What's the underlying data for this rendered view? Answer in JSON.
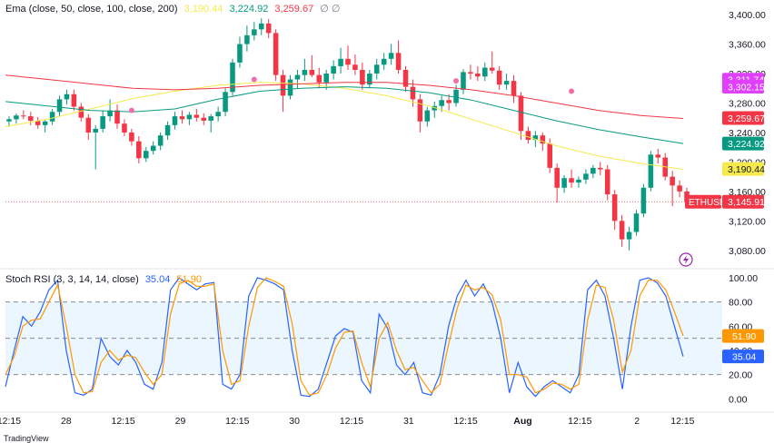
{
  "chart_data": [
    {
      "type": "candlestick",
      "symbol": "ETHUSD",
      "indicator": "Ema (close, 50, close, 100, close, 200)",
      "ema_values": {
        "ema50": "3,190.44",
        "ema100": "3,224.92",
        "ema200": "3,259.67",
        "ema_extra": "∅ ∅"
      },
      "price_label": "3,145.91",
      "right_tags": [
        {
          "text": "3,311.74",
          "color": "#e040fb"
        },
        {
          "text": "3,302.15",
          "color": "#e040fb"
        },
        {
          "text": "3,259.67",
          "color": "#f23645"
        },
        {
          "text": "3,224.92",
          "color": "#089981"
        },
        {
          "text": "3,190.44",
          "color": "#f5e94b"
        }
      ],
      "yticks": [
        "3,400.00",
        "3,360.00",
        "3,320.00",
        "3,280.00",
        "3,240.00",
        "3,200.00",
        "3,160.00",
        "3,120.00",
        "3,080.00"
      ],
      "ytick_values": [
        3400,
        3360,
        3320,
        3280,
        3240,
        3200,
        3160,
        3120,
        3080
      ],
      "ylim": [
        3060,
        3410
      ],
      "ohlc": [
        [
          3255,
          3262,
          3248,
          3258
        ],
        [
          3258,
          3266,
          3252,
          3263
        ],
        [
          3263,
          3270,
          3258,
          3262
        ],
        [
          3262,
          3268,
          3250,
          3256
        ],
        [
          3256,
          3261,
          3245,
          3250
        ],
        [
          3250,
          3258,
          3240,
          3255
        ],
        [
          3255,
          3272,
          3250,
          3268
        ],
        [
          3268,
          3290,
          3262,
          3285
        ],
        [
          3285,
          3298,
          3278,
          3292
        ],
        [
          3292,
          3298,
          3270,
          3275
        ],
        [
          3275,
          3280,
          3255,
          3260
        ],
        [
          3260,
          3265,
          3230,
          3240
        ],
        [
          3240,
          3250,
          3190,
          3245
        ],
        [
          3245,
          3270,
          3240,
          3262
        ],
        [
          3262,
          3285,
          3255,
          3270
        ],
        [
          3270,
          3278,
          3245,
          3252
        ],
        [
          3252,
          3258,
          3235,
          3240
        ],
        [
          3240,
          3245,
          3222,
          3228
        ],
        [
          3228,
          3235,
          3198,
          3205
        ],
        [
          3205,
          3220,
          3200,
          3215
        ],
        [
          3215,
          3228,
          3210,
          3222
        ],
        [
          3222,
          3240,
          3216,
          3236
        ],
        [
          3236,
          3255,
          3230,
          3250
        ],
        [
          3250,
          3268,
          3244,
          3262
        ],
        [
          3262,
          3270,
          3252,
          3258
        ],
        [
          3258,
          3268,
          3250,
          3264
        ],
        [
          3264,
          3272,
          3255,
          3260
        ],
        [
          3260,
          3266,
          3250,
          3256
        ],
        [
          3256,
          3265,
          3240,
          3262
        ],
        [
          3262,
          3275,
          3255,
          3268
        ],
        [
          3268,
          3300,
          3262,
          3295
        ],
        [
          3295,
          3340,
          3290,
          3335
        ],
        [
          3335,
          3370,
          3328,
          3360
        ],
        [
          3360,
          3385,
          3350,
          3372
        ],
        [
          3372,
          3390,
          3365,
          3380
        ],
        [
          3380,
          3395,
          3372,
          3388
        ],
        [
          3388,
          3394,
          3368,
          3375
        ],
        [
          3375,
          3380,
          3310,
          3318
        ],
        [
          3318,
          3325,
          3268,
          3290
        ],
        [
          3290,
          3318,
          3285,
          3312
        ],
        [
          3312,
          3325,
          3300,
          3318
        ],
        [
          3318,
          3340,
          3310,
          3325
        ],
        [
          3325,
          3345,
          3315,
          3318
        ],
        [
          3318,
          3328,
          3300,
          3308
        ],
        [
          3308,
          3325,
          3298,
          3320
        ],
        [
          3320,
          3338,
          3312,
          3330
        ],
        [
          3330,
          3355,
          3320,
          3340
        ],
        [
          3340,
          3358,
          3325,
          3332
        ],
        [
          3332,
          3346,
          3318,
          3325
        ],
        [
          3325,
          3335,
          3298,
          3305
        ],
        [
          3305,
          3325,
          3300,
          3320
        ],
        [
          3320,
          3340,
          3312,
          3332
        ],
        [
          3332,
          3348,
          3325,
          3340
        ],
        [
          3340,
          3360,
          3332,
          3348
        ],
        [
          3348,
          3365,
          3320,
          3325
        ],
        [
          3325,
          3330,
          3295,
          3302
        ],
        [
          3302,
          3312,
          3275,
          3285
        ],
        [
          3285,
          3292,
          3240,
          3255
        ],
        [
          3255,
          3275,
          3248,
          3270
        ],
        [
          3270,
          3282,
          3260,
          3276
        ],
        [
          3276,
          3290,
          3268,
          3284
        ],
        [
          3284,
          3292,
          3270,
          3280
        ],
        [
          3280,
          3305,
          3275,
          3298
        ],
        [
          3298,
          3326,
          3292,
          3322
        ],
        [
          3322,
          3332,
          3312,
          3320
        ],
        [
          3320,
          3330,
          3310,
          3316
        ],
        [
          3316,
          3335,
          3310,
          3328
        ],
        [
          3328,
          3350,
          3320,
          3324
        ],
        [
          3324,
          3330,
          3298,
          3305
        ],
        [
          3305,
          3320,
          3298,
          3310
        ],
        [
          3310,
          3318,
          3280,
          3290
        ],
        [
          3290,
          3295,
          3230,
          3242
        ],
        [
          3242,
          3248,
          3225,
          3230
        ],
        [
          3230,
          3242,
          3220,
          3236
        ],
        [
          3236,
          3240,
          3215,
          3225
        ],
        [
          3225,
          3232,
          3185,
          3192
        ],
        [
          3192,
          3198,
          3145,
          3165
        ],
        [
          3165,
          3182,
          3158,
          3178
        ],
        [
          3178,
          3190,
          3165,
          3172
        ],
        [
          3172,
          3180,
          3165,
          3176
        ],
        [
          3176,
          3190,
          3170,
          3184
        ],
        [
          3184,
          3196,
          3178,
          3192
        ],
        [
          3192,
          3200,
          3182,
          3190
        ],
        [
          3190,
          3196,
          3148,
          3156
        ],
        [
          3156,
          3162,
          3108,
          3120
        ],
        [
          3120,
          3128,
          3085,
          3095
        ],
        [
          3095,
          3112,
          3080,
          3105
        ],
        [
          3105,
          3135,
          3100,
          3130
        ],
        [
          3130,
          3170,
          3125,
          3165
        ],
        [
          3165,
          3215,
          3160,
          3210
        ],
        [
          3210,
          3218,
          3198,
          3206
        ],
        [
          3206,
          3212,
          3175,
          3180
        ],
        [
          3180,
          3188,
          3140,
          3168
        ],
        [
          3168,
          3175,
          3152,
          3160
        ],
        [
          3160,
          3165,
          3140,
          3146
        ]
      ],
      "ema_lines": [
        {
          "name": "ema50",
          "color": "#f5e94b",
          "values": [
            3248,
            3258,
            3272,
            3286,
            3296,
            3304,
            3308,
            3306,
            3300,
            3290,
            3276,
            3258,
            3240,
            3222,
            3208,
            3198,
            3190
          ]
        },
        {
          "name": "ema100",
          "color": "#089981",
          "values": [
            3282,
            3276,
            3270,
            3268,
            3272,
            3285,
            3296,
            3300,
            3302,
            3300,
            3294,
            3284,
            3270,
            3256,
            3244,
            3234,
            3225
          ]
        },
        {
          "name": "ema200",
          "color": "#f23645",
          "values": [
            3318,
            3312,
            3306,
            3300,
            3298,
            3300,
            3304,
            3306,
            3308,
            3308,
            3304,
            3298,
            3290,
            3280,
            3270,
            3263,
            3259
          ]
        }
      ],
      "pink_marks": [
        {
          "index": 17,
          "value": 3270
        },
        {
          "index": 34,
          "value": 3312
        },
        {
          "index": 62,
          "value": 3310
        },
        {
          "index": 78,
          "value": 3296
        }
      ]
    },
    {
      "type": "line",
      "title": "Stoch RSI (3, 3, 14, 14, close)",
      "k_label": "35.04",
      "d_label": "51.90",
      "yticks": [
        "100.00",
        "80.00",
        "60.00",
        "40.00",
        "20.00",
        "0.00"
      ],
      "ytick_values": [
        100,
        80,
        60,
        40,
        20,
        0
      ],
      "ylim": [
        -8,
        106
      ],
      "band": [
        20,
        80
      ],
      "midline": 50,
      "xticks": [
        "12:15",
        "28",
        "12:15",
        "29",
        "12:15",
        "30",
        "12:15",
        "31",
        "12:15",
        "Aug",
        "12:15",
        "2",
        "12:15"
      ],
      "xtick_index": [
        0,
        10,
        20,
        30,
        40,
        50,
        60,
        70,
        80,
        90,
        100,
        110,
        118
      ],
      "series": [
        {
          "name": "K",
          "color": "#2962ff",
          "values": [
            10,
            40,
            68,
            60,
            72,
            90,
            98,
            40,
            5,
            3,
            8,
            50,
            35,
            28,
            40,
            30,
            12,
            8,
            30,
            90,
            100,
            95,
            90,
            95,
            96,
            12,
            8,
            20,
            85,
            100,
            98,
            95,
            90,
            40,
            3,
            2,
            8,
            30,
            52,
            58,
            55,
            15,
            5,
            70,
            58,
            28,
            20,
            30,
            5,
            3,
            20,
            60,
            85,
            98,
            85,
            95,
            80,
            50,
            5,
            30,
            10,
            2,
            10,
            15,
            10,
            5,
            20,
            90,
            98,
            85,
            50,
            8,
            60,
            98,
            100,
            96,
            85,
            60,
            35
          ]
        },
        {
          "name": "D",
          "color": "#ff9800",
          "values": [
            20,
            35,
            60,
            65,
            66,
            80,
            94,
            60,
            20,
            5,
            6,
            30,
            40,
            32,
            36,
            34,
            22,
            12,
            20,
            70,
            95,
            98,
            93,
            93,
            95,
            40,
            12,
            15,
            60,
            92,
            100,
            97,
            93,
            62,
            15,
            3,
            5,
            20,
            42,
            55,
            56,
            30,
            10,
            50,
            63,
            40,
            24,
            26,
            15,
            5,
            12,
            45,
            75,
            94,
            90,
            92,
            86,
            65,
            20,
            20,
            18,
            5,
            8,
            13,
            12,
            8,
            12,
            65,
            94,
            92,
            65,
            22,
            40,
            85,
            98,
            98,
            90,
            72,
            52
          ]
        }
      ]
    }
  ],
  "watermark": "TradingView",
  "live_icon": "lightning-icon"
}
